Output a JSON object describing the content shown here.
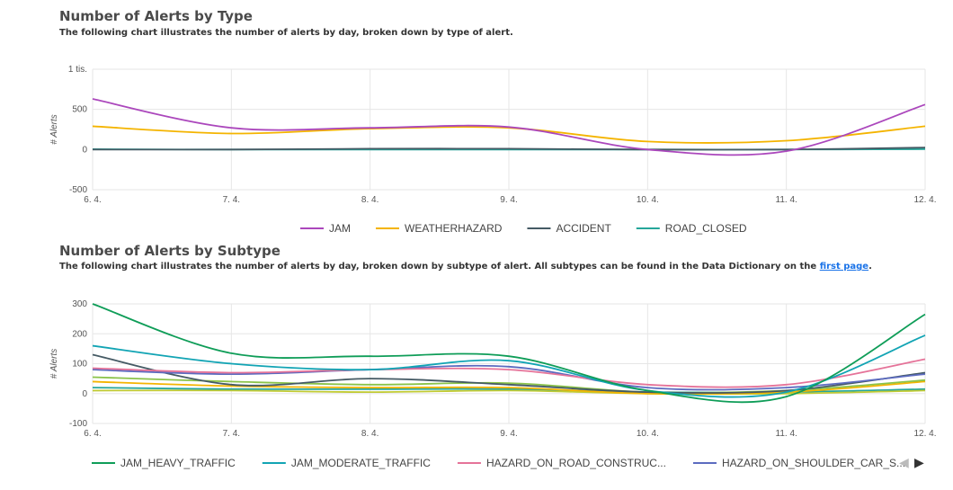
{
  "chart1": {
    "title": "Number of Alerts by Type",
    "subtitle": "The following chart illustrates the number of alerts by day, broken down by type of alert.",
    "ylabel": "# Alerts",
    "chart_data": {
      "type": "line",
      "x": [
        "6. 4.",
        "7. 4.",
        "8. 4.",
        "9. 4.",
        "10. 4.",
        "11. 4.",
        "12. 4."
      ],
      "yticks": [
        "-500",
        "0",
        "500",
        "1 tis."
      ],
      "ylim": [
        -500,
        1000
      ],
      "series": [
        {
          "name": "JAM",
          "color": "#ab47bc",
          "values": [
            630,
            270,
            270,
            280,
            0,
            -20,
            560
          ]
        },
        {
          "name": "WEATHERHAZARD",
          "color": "#f4b400",
          "values": [
            290,
            200,
            260,
            270,
            100,
            110,
            290
          ]
        },
        {
          "name": "ACCIDENT",
          "color": "#455a64",
          "values": [
            0,
            0,
            10,
            10,
            0,
            0,
            25
          ]
        },
        {
          "name": "ROAD_CLOSED",
          "color": "#26a69a",
          "values": [
            5,
            0,
            0,
            0,
            0,
            0,
            5
          ]
        }
      ]
    }
  },
  "chart2": {
    "title": "Number of Alerts by Subtype",
    "subtitle_pre": "The following chart illustrates the number of alerts by day, broken down by subtype of alert. All subtypes can be found in the Data Dictionary on the ",
    "subtitle_link": "first page",
    "subtitle_post": ".",
    "ylabel": "# Alerts",
    "chart_data": {
      "type": "line",
      "x": [
        "6. 4.",
        "7. 4.",
        "8. 4.",
        "9. 4.",
        "10. 4.",
        "11. 4.",
        "12. 4."
      ],
      "yticks": [
        "-100",
        "0",
        "100",
        "200",
        "300"
      ],
      "ylim": [
        -100,
        300
      ],
      "series": [
        {
          "name": "JAM_HEAVY_TRAFFIC",
          "color": "#0f9d58",
          "values": [
            300,
            135,
            125,
            125,
            10,
            -10,
            265
          ]
        },
        {
          "name": "JAM_MODERATE_TRAFFIC",
          "color": "#12a4b4",
          "values": [
            160,
            100,
            80,
            110,
            10,
            5,
            195
          ]
        },
        {
          "name": "HAZARD_ON_ROAD_CONSTRUC...",
          "color": "#e57399",
          "values": [
            85,
            70,
            80,
            80,
            30,
            30,
            115
          ]
        },
        {
          "name": "HAZARD_ON_SHOULDER_CAR_S...",
          "color": "#5c6bc0",
          "values": [
            80,
            65,
            80,
            90,
            20,
            20,
            65
          ]
        },
        {
          "name": "",
          "color": "#455a64",
          "values": [
            130,
            30,
            50,
            30,
            5,
            10,
            70
          ]
        },
        {
          "name": "",
          "color": "#8bc34a",
          "values": [
            55,
            40,
            30,
            35,
            5,
            10,
            45
          ]
        },
        {
          "name": "",
          "color": "#f4b400",
          "values": [
            40,
            25,
            20,
            20,
            0,
            5,
            40
          ]
        },
        {
          "name": "",
          "color": "#c0ca33",
          "values": [
            10,
            10,
            5,
            10,
            0,
            0,
            10
          ]
        },
        {
          "name": "",
          "color": "#26a69a",
          "values": [
            20,
            15,
            15,
            15,
            5,
            5,
            15
          ]
        }
      ]
    },
    "legend_nav": {
      "prev": "◀",
      "next": "▶"
    }
  }
}
